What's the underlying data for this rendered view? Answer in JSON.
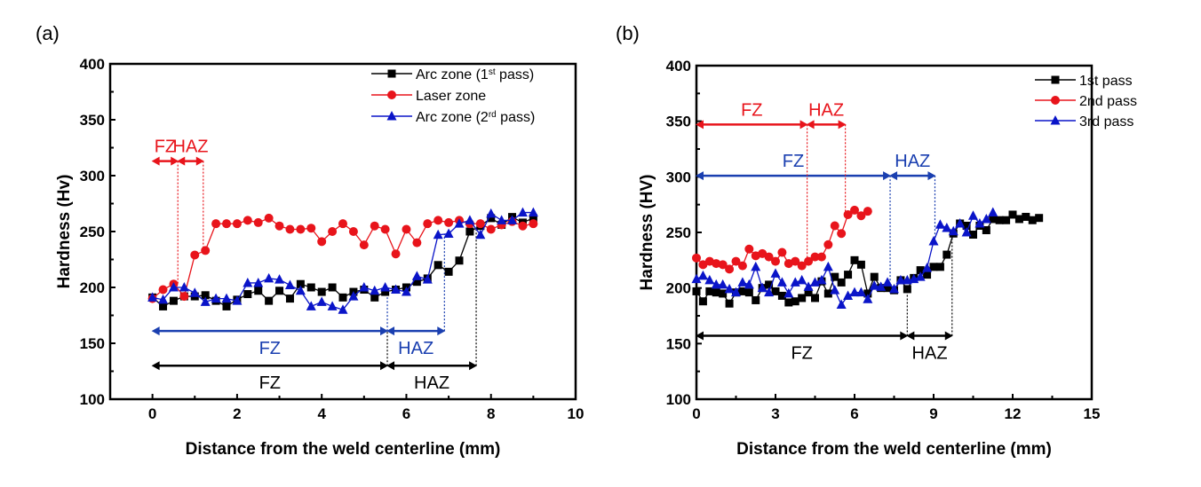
{
  "chart_data": [
    {
      "type": "line",
      "panel_label": "(a)",
      "title": "",
      "xlabel": "Distance from the weld centerline (mm)",
      "ylabel": "Hardness (Hv)",
      "xlim": [
        -1,
        10
      ],
      "ylim": [
        100,
        400
      ],
      "xticks": [
        0,
        2,
        4,
        6,
        8,
        10
      ],
      "yticks": [
        100,
        150,
        200,
        250,
        300,
        350,
        400
      ],
      "grid": false,
      "legend_position": "top-right",
      "series": [
        {
          "name": "Arc zone (1st pass)",
          "legend_main": "Arc zone (1",
          "legend_sup": "st",
          "legend_tail": " pass)",
          "color": "#000000",
          "marker": "square",
          "x": [
            0,
            0.25,
            0.5,
            0.75,
            1.0,
            1.25,
            1.5,
            1.75,
            2.0,
            2.25,
            2.5,
            2.75,
            3.0,
            3.25,
            3.5,
            3.75,
            4.0,
            4.25,
            4.5,
            4.75,
            5.0,
            5.25,
            5.5,
            5.75,
            6.0,
            6.25,
            6.5,
            6.75,
            7.0,
            7.25,
            7.5,
            7.75,
            8.0,
            8.25,
            8.5,
            8.75,
            9.0
          ],
          "values": [
            191,
            183,
            188,
            192,
            192,
            193,
            188,
            183,
            189,
            194,
            197,
            188,
            197,
            190,
            203,
            200,
            196,
            200,
            191,
            196,
            198,
            191,
            196,
            198,
            200,
            205,
            208,
            220,
            214,
            224,
            250,
            255,
            262,
            256,
            263,
            258,
            262
          ]
        },
        {
          "name": "Laser zone",
          "legend_main": "Laser zone",
          "legend_sup": "",
          "legend_tail": "",
          "color": "#e8141b",
          "marker": "circle",
          "x": [
            0,
            0.25,
            0.5,
            0.75,
            1.0,
            1.25,
            1.5,
            1.75,
            2.0,
            2.25,
            2.5,
            2.75,
            3.0,
            3.25,
            3.5,
            3.75,
            4.0,
            4.25,
            4.5,
            4.75,
            5.0,
            5.25,
            5.5,
            5.75,
            6.0,
            6.25,
            6.5,
            6.75,
            7.0,
            7.25,
            7.5,
            7.75,
            8.0,
            8.25,
            8.5,
            8.75,
            9.0
          ],
          "values": [
            190,
            198,
            203,
            192,
            229,
            233,
            257,
            257,
            257,
            260,
            258,
            262,
            255,
            252,
            252,
            253,
            241,
            250,
            257,
            250,
            238,
            255,
            252,
            230,
            252,
            240,
            257,
            260,
            258,
            260,
            257,
            257,
            252,
            256,
            259,
            255,
            257
          ]
        },
        {
          "name": "Arc zone (2rd pass)",
          "legend_main": "Arc zone (2",
          "legend_sup": "rd",
          "legend_tail": " pass)",
          "color": "#0a14c8",
          "marker": "triangle",
          "x": [
            0,
            0.25,
            0.5,
            0.75,
            1.0,
            1.25,
            1.5,
            1.75,
            2.0,
            2.25,
            2.5,
            2.75,
            3.0,
            3.25,
            3.5,
            3.75,
            4.0,
            4.25,
            4.5,
            4.75,
            5.0,
            5.25,
            5.5,
            5.75,
            6.0,
            6.25,
            6.5,
            6.75,
            7.0,
            7.25,
            7.5,
            7.75,
            8.0,
            8.25,
            8.5,
            8.75,
            9.0
          ],
          "values": [
            191,
            189,
            200,
            200,
            195,
            187,
            190,
            190,
            188,
            204,
            204,
            208,
            207,
            202,
            197,
            183,
            187,
            183,
            180,
            192,
            200,
            197,
            200,
            198,
            196,
            210,
            207,
            247,
            248,
            257,
            260,
            247,
            266,
            260,
            260,
            267,
            267
          ]
        }
      ],
      "annotations": [
        {
          "label": "FZ",
          "color": "#e8141b",
          "x0": 0,
          "x1": 0.6,
          "y": 313
        },
        {
          "label": "HAZ",
          "color": "#e8141b",
          "x0": 0.6,
          "x1": 1.2,
          "y": 313
        },
        {
          "label": "FZ",
          "color": "#1a3fb0",
          "x0": 0,
          "x1": 5.55,
          "y": 161
        },
        {
          "label": "HAZ",
          "color": "#1a3fb0",
          "x0": 5.55,
          "x1": 6.9,
          "y": 161
        },
        {
          "label": "FZ",
          "color": "#000000",
          "x0": 0,
          "x1": 5.55,
          "y": 130
        },
        {
          "label": "HAZ",
          "color": "#000000",
          "x0": 5.55,
          "x1": 7.65,
          "y": 130
        }
      ]
    },
    {
      "type": "line",
      "panel_label": "(b)",
      "title": "",
      "xlabel": "Distance from the weld centerline (mm)",
      "ylabel": "Hardness (HV)",
      "xlim": [
        0,
        15
      ],
      "ylim": [
        100,
        400
      ],
      "xticks": [
        0,
        3,
        6,
        9,
        12,
        15
      ],
      "yticks": [
        100,
        150,
        200,
        250,
        300,
        350,
        400
      ],
      "grid": false,
      "legend_position": "top-right",
      "series": [
        {
          "name": "1st pass",
          "legend_main": "1st pass",
          "legend_sup": "",
          "legend_tail": "",
          "color": "#000000",
          "marker": "square",
          "x": [
            0,
            0.25,
            0.5,
            0.75,
            1.0,
            1.25,
            1.5,
            1.75,
            2.0,
            2.25,
            2.5,
            2.75,
            3.0,
            3.25,
            3.5,
            3.75,
            4.0,
            4.25,
            4.5,
            4.75,
            5.0,
            5.25,
            5.5,
            5.75,
            6.0,
            6.25,
            6.5,
            6.75,
            7.0,
            7.25,
            7.5,
            7.75,
            8.0,
            8.25,
            8.5,
            8.75,
            9.0,
            9.25,
            9.5,
            9.75,
            10.0,
            10.25,
            10.5,
            10.75,
            11.0,
            11.25,
            11.5,
            11.75,
            12.0,
            12.25,
            12.5,
            12.75,
            13.0
          ],
          "values": [
            197,
            188,
            197,
            196,
            195,
            186,
            196,
            197,
            196,
            189,
            200,
            203,
            197,
            193,
            187,
            188,
            191,
            196,
            191,
            206,
            195,
            210,
            205,
            212,
            225,
            221,
            195,
            210,
            200,
            200,
            198,
            207,
            199,
            209,
            216,
            212,
            219,
            219,
            230,
            249,
            258,
            256,
            248,
            256,
            252,
            262,
            261,
            261,
            266,
            262,
            264,
            261,
            263
          ]
        },
        {
          "name": "2nd pass",
          "legend_main": "2nd pass",
          "legend_sup": "",
          "legend_tail": "",
          "color": "#e8141b",
          "marker": "circle",
          "x": [
            0,
            0.25,
            0.5,
            0.75,
            1.0,
            1.25,
            1.5,
            1.75,
            2.0,
            2.25,
            2.5,
            2.75,
            3.0,
            3.25,
            3.5,
            3.75,
            4.0,
            4.25,
            4.5,
            4.75,
            5.0,
            5.25,
            5.5,
            5.75,
            6.0,
            6.25,
            6.5
          ],
          "values": [
            227,
            221,
            224,
            222,
            221,
            217,
            224,
            220,
            235,
            229,
            231,
            228,
            224,
            232,
            222,
            224,
            220,
            224,
            228,
            228,
            239,
            256,
            249,
            266,
            270,
            265,
            269
          ]
        },
        {
          "name": "3rd pass",
          "legend_main": "3rd pass",
          "legend_sup": "",
          "legend_tail": "",
          "color": "#0a14c8",
          "marker": "triangle",
          "x": [
            0,
            0.25,
            0.5,
            0.75,
            1.0,
            1.25,
            1.5,
            1.75,
            2.0,
            2.25,
            2.5,
            2.75,
            3.0,
            3.25,
            3.5,
            3.75,
            4.0,
            4.25,
            4.5,
            4.75,
            5.0,
            5.25,
            5.5,
            5.75,
            6.0,
            6.25,
            6.5,
            6.75,
            7.0,
            7.25,
            7.5,
            7.75,
            8.0,
            8.25,
            8.5,
            8.75,
            9.0,
            9.25,
            9.5,
            9.75,
            10.0,
            10.25,
            10.5,
            10.75,
            11.0,
            11.25
          ],
          "values": [
            208,
            211,
            207,
            203,
            203,
            199,
            196,
            205,
            203,
            219,
            200,
            196,
            213,
            205,
            195,
            205,
            207,
            201,
            205,
            207,
            219,
            198,
            185,
            193,
            196,
            196,
            190,
            202,
            201,
            205,
            199,
            207,
            207,
            208,
            210,
            218,
            242,
            257,
            254,
            251,
            258,
            250,
            265,
            258,
            262,
            268
          ]
        }
      ],
      "annotations": [
        {
          "label": "FZ",
          "color": "#e8141b",
          "x0": 0,
          "x1": 4.2,
          "y": 347
        },
        {
          "label": "HAZ",
          "color": "#e8141b",
          "x0": 4.2,
          "x1": 5.65,
          "y": 347
        },
        {
          "label": "FZ",
          "color": "#1a3fb0",
          "x0": 0,
          "x1": 7.35,
          "y": 301
        },
        {
          "label": "HAZ",
          "color": "#1a3fb0",
          "x0": 7.35,
          "x1": 9.05,
          "y": 301
        },
        {
          "label": "FZ",
          "color": "#000000",
          "x0": 0,
          "x1": 8.0,
          "y": 157
        },
        {
          "label": "HAZ",
          "color": "#000000",
          "x0": 8.0,
          "x1": 9.7,
          "y": 157
        }
      ]
    }
  ]
}
